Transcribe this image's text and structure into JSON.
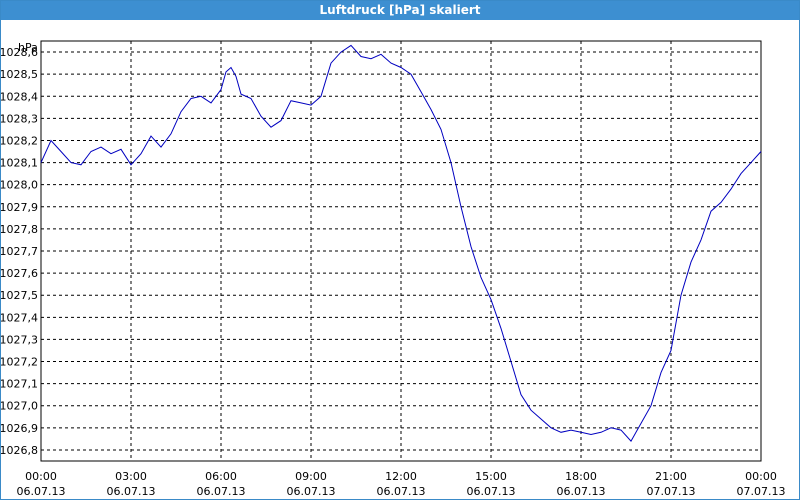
{
  "window": {
    "title": "Luftdruck [hPa] skaliert"
  },
  "colors": {
    "titlebar": "#3d8fd1",
    "line": "#0000c0",
    "grid": "#000000",
    "background": "#ffffff"
  },
  "chart_data": {
    "type": "line",
    "title": "Luftdruck [hPa] skaliert",
    "ylabel": "hPa",
    "xlabel": "",
    "ylim": [
      1026.75,
      1028.65
    ],
    "grid": true,
    "yticks": [
      "1026,8",
      "1026,9",
      "1027,0",
      "1027,1",
      "1027,2",
      "1027,3",
      "1027,4",
      "1027,5",
      "1027,6",
      "1027,7",
      "1027,8",
      "1027,9",
      "1028,0",
      "1028,1",
      "1028,2",
      "1028,3",
      "1028,4",
      "1028,5",
      "1028,6"
    ],
    "xticks": [
      {
        "time": "00:00",
        "date": "06.07.13"
      },
      {
        "time": "03:00",
        "date": "06.07.13"
      },
      {
        "time": "06:00",
        "date": "06.07.13"
      },
      {
        "time": "09:00",
        "date": "06.07.13"
      },
      {
        "time": "12:00",
        "date": "06.07.13"
      },
      {
        "time": "15:00",
        "date": "06.07.13"
      },
      {
        "time": "18:00",
        "date": "06.07.13"
      },
      {
        "time": "21:00",
        "date": "07.07.13"
      },
      {
        "time": "00:00",
        "date": "07.07.13"
      }
    ],
    "series": [
      {
        "x": [
          "06.07.13 00:00",
          "06.07.13 00:20",
          "06.07.13 00:40",
          "06.07.13 01:00",
          "06.07.13 01:20",
          "06.07.13 01:40",
          "06.07.13 02:00",
          "06.07.13 02:20",
          "06.07.13 02:40",
          "06.07.13 03:00",
          "06.07.13 03:20",
          "06.07.13 03:40",
          "06.07.13 04:00",
          "06.07.13 04:20",
          "06.07.13 04:40",
          "06.07.13 05:00",
          "06.07.13 05:20",
          "06.07.13 05:40",
          "06.07.13 06:00",
          "06.07.13 06:10",
          "06.07.13 06:20",
          "06.07.13 06:30",
          "06.07.13 06:40",
          "06.07.13 07:00",
          "06.07.13 07:20",
          "06.07.13 07:40",
          "06.07.13 08:00",
          "06.07.13 08:20",
          "06.07.13 08:40",
          "06.07.13 09:00",
          "06.07.13 09:20",
          "06.07.13 09:40",
          "06.07.13 10:00",
          "06.07.13 10:20",
          "06.07.13 10:40",
          "06.07.13 11:00",
          "06.07.13 11:20",
          "06.07.13 11:40",
          "06.07.13 12:00",
          "06.07.13 12:20",
          "06.07.13 12:40",
          "06.07.13 13:00",
          "06.07.13 13:20",
          "06.07.13 13:40",
          "06.07.13 14:00",
          "06.07.13 14:20",
          "06.07.13 14:40",
          "06.07.13 15:00",
          "06.07.13 15:20",
          "06.07.13 15:40",
          "06.07.13 16:00",
          "06.07.13 16:20",
          "06.07.13 16:40",
          "06.07.13 17:00",
          "06.07.13 17:20",
          "06.07.13 17:40",
          "06.07.13 18:00",
          "06.07.13 18:20",
          "06.07.13 18:40",
          "06.07.13 19:00",
          "06.07.13 19:20",
          "06.07.13 19:40",
          "06.07.13 20:00",
          "06.07.13 20:20",
          "06.07.13 20:40",
          "06.07.13 21:00",
          "06.07.13 21:20",
          "06.07.13 21:40",
          "06.07.13 22:00",
          "06.07.13 22:20",
          "06.07.13 22:40",
          "06.07.13 23:00",
          "06.07.13 23:20",
          "06.07.13 23:40",
          "07.07.13 00:00"
        ],
        "values": [
          1028.1,
          1028.2,
          1028.15,
          1028.1,
          1028.09,
          1028.15,
          1028.17,
          1028.14,
          1028.16,
          1028.09,
          1028.14,
          1028.22,
          1028.17,
          1028.23,
          1028.33,
          1028.39,
          1028.4,
          1028.37,
          1028.43,
          1028.51,
          1028.53,
          1028.49,
          1028.41,
          1028.39,
          1028.31,
          1028.26,
          1028.29,
          1028.38,
          1028.37,
          1028.36,
          1028.4,
          1028.55,
          1028.6,
          1028.63,
          1028.58,
          1028.57,
          1028.59,
          1028.55,
          1028.53,
          1028.5,
          1028.42,
          1028.34,
          1028.25,
          1028.1,
          1027.9,
          1027.72,
          1027.58,
          1027.48,
          1027.35,
          1027.2,
          1027.05,
          1026.98,
          1026.94,
          1026.9,
          1026.88,
          1026.89,
          1026.88,
          1026.87,
          1026.88,
          1026.9,
          1026.89,
          1026.84,
          1026.92,
          1027.0,
          1027.15,
          1027.25,
          1027.5,
          1027.65,
          1027.75,
          1027.88,
          1027.92,
          1027.98,
          1028.05,
          1028.1,
          1028.15
        ]
      }
    ]
  }
}
